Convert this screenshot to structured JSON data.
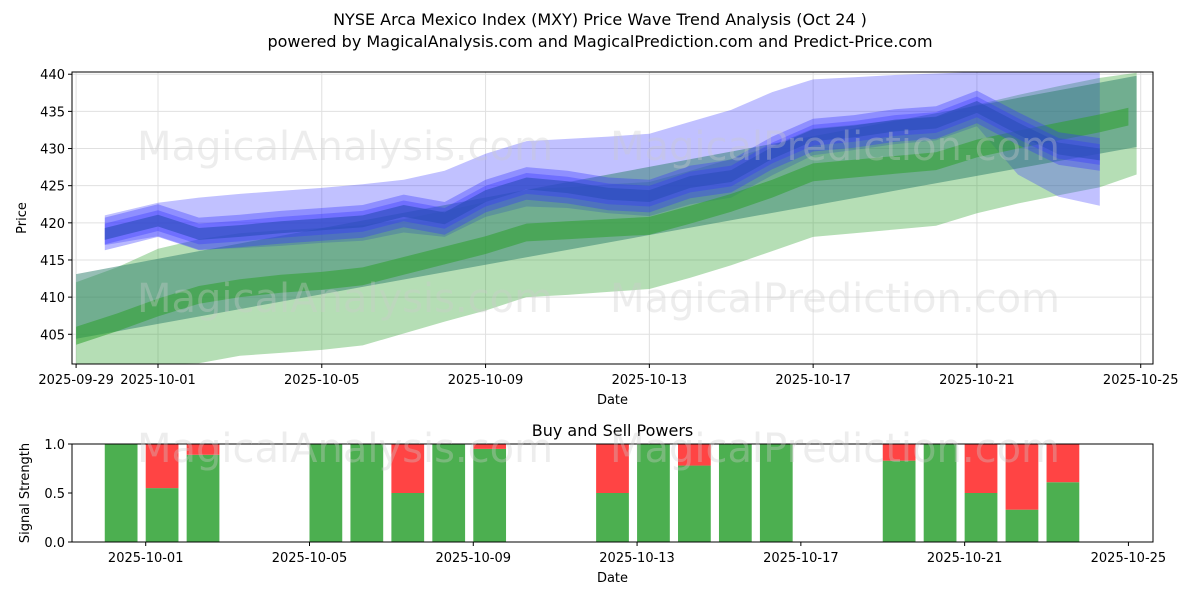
{
  "title_line1": "NYSE Arca Mexico Index (MXY) Price Wave Trend Analysis (Oct 24 )",
  "title_line2": "powered by MagicalAnalysis.com and MagicalPrediction.com and Predict-Price.com",
  "watermarks": [
    "MagicalAnalysis.com",
    "MagicalPrediction.com"
  ],
  "colors": {
    "blue": "#3333ff",
    "green": "#2ca02c",
    "buy": "#4caf50",
    "sell": "#ff4444",
    "grid": "#e0e0e0"
  },
  "chart_data": [
    {
      "type": "line",
      "name": "price-wave-trend",
      "xlabel": "Date",
      "ylabel": "Price",
      "x_tick_labels": [
        "2025-09-29",
        "2025-10-01",
        "2025-10-05",
        "2025-10-09",
        "2025-10-13",
        "2025-10-17",
        "2025-10-21",
        "2025-10-25"
      ],
      "x_tick_days": [
        -2,
        0,
        4,
        8,
        12,
        16,
        20,
        24
      ],
      "xlim_days": [
        -2.1,
        24.3
      ],
      "ylim": [
        401,
        440.3
      ],
      "y_ticks": [
        405,
        410,
        415,
        420,
        425,
        430,
        435,
        440
      ],
      "grid": true,
      "series": [
        {
          "name": "blue-wave-price-band",
          "x_days": [
            -1.3,
            0,
            1,
            2,
            3,
            4,
            5,
            6,
            7,
            8,
            9,
            10,
            11,
            12,
            13,
            14,
            15,
            16,
            17,
            18,
            19,
            20,
            21,
            22,
            23
          ],
          "values": [
            418.5,
            420.3,
            418.5,
            418.9,
            419.4,
            419.8,
            420.2,
            421.6,
            420.6,
            423.6,
            425.3,
            424.8,
            423.9,
            423.6,
            425.5,
            426.3,
            429.4,
            431.8,
            432.3,
            433.1,
            433.5,
            435.6,
            432.7,
            430.0,
            429.2
          ],
          "band_half_width": 1.2
        },
        {
          "name": "blue-upper-envelope",
          "x_days": [
            -1.3,
            0,
            1,
            2,
            3,
            4,
            5,
            6,
            7,
            8,
            9,
            10,
            11,
            12,
            13,
            14,
            15,
            16,
            17,
            18,
            19,
            20,
            21,
            22,
            23
          ],
          "values": [
            421,
            422.7,
            423.4,
            423.9,
            424.3,
            424.7,
            425.2,
            425.8,
            427,
            429.3,
            431,
            431.3,
            431.6,
            432,
            433.6,
            435.2,
            437.6,
            439.3,
            439.6,
            439.9,
            440.1,
            440.3,
            440.3,
            440.3,
            440.3
          ]
        },
        {
          "name": "blue-lower-envelope",
          "x_days": [
            -1.3,
            0,
            1,
            2,
            3,
            4,
            5,
            6,
            7,
            8,
            9,
            10,
            11,
            12,
            13,
            14,
            15,
            16,
            17,
            18,
            19,
            20,
            21,
            22,
            23
          ],
          "values": [
            417,
            418.2,
            416.4,
            416.6,
            416.9,
            417.3,
            417.6,
            418.7,
            418.1,
            420.8,
            422.2,
            422,
            421.3,
            420.9,
            422.5,
            423.4,
            426.4,
            429.1,
            429.8,
            430.6,
            431.1,
            433,
            426.5,
            423.5,
            422.3
          ]
        },
        {
          "name": "teal-trend-band",
          "x_days": [
            -2,
            23.9
          ],
          "upper": [
            413.1,
            439.8
          ],
          "lower": [
            404.4,
            430.2
          ]
        },
        {
          "name": "green-trend-center",
          "x_days": [
            -2,
            -1,
            0,
            1,
            2,
            3,
            4,
            5,
            6,
            7,
            8,
            9,
            10,
            11,
            12,
            13,
            14,
            15,
            16,
            17,
            18,
            19,
            20,
            21,
            22,
            23,
            23.7
          ],
          "values": [
            404.8,
            406.6,
            408.6,
            410.3,
            411.2,
            411.8,
            412.2,
            412.8,
            414.2,
            415.6,
            417,
            418.7,
            419,
            419.3,
            419.6,
            421.1,
            422.7,
            424.6,
            426.8,
            427.3,
            427.8,
            428.3,
            430,
            431.2,
            432.3,
            433.4,
            434.3
          ],
          "band_half_width": 1.2
        },
        {
          "name": "green-upper-envelope",
          "x_days": [
            -2,
            -1,
            0,
            1,
            2,
            3,
            4,
            5,
            6,
            7,
            8,
            9,
            10,
            11,
            12,
            13,
            14,
            15,
            16,
            17,
            18,
            19,
            20,
            21,
            22,
            23,
            23.9
          ],
          "values": [
            412,
            414,
            416.5,
            417.8,
            418.6,
            419,
            419.3,
            419.7,
            420.5,
            421.6,
            422.8,
            424.5,
            424.8,
            425.2,
            425.5,
            427,
            428.6,
            430.4,
            432.7,
            433.2,
            433.8,
            434.2,
            435.9,
            437.2,
            438.4,
            439.5,
            440.2
          ]
        },
        {
          "name": "green-lower-envelope",
          "x_days": [
            -2,
            -1,
            0,
            1,
            2,
            3,
            4,
            5,
            6,
            7,
            8,
            9,
            10,
            11,
            12,
            13,
            14,
            15,
            16,
            17,
            18,
            19,
            20,
            21,
            22,
            23,
            24.4
          ],
          "values": [
            401,
            401,
            401,
            401.1,
            402.1,
            402.5,
            402.9,
            403.5,
            405.1,
            406.7,
            408.2,
            410,
            410.3,
            410.7,
            411.1,
            412.6,
            414.3,
            416.2,
            418.1,
            418.6,
            419.1,
            419.6,
            421.3,
            422.6,
            423.7,
            424.8,
            426.5
          ]
        }
      ]
    },
    {
      "type": "bar",
      "name": "buy-and-sell-powers",
      "title": "Buy and Sell Powers",
      "xlabel": "Date",
      "ylabel": "Signal Strength",
      "x_tick_labels": [
        "2025-10-01",
        "2025-10-05",
        "2025-10-09",
        "2025-10-13",
        "2025-10-17",
        "2025-10-21",
        "2025-10-25"
      ],
      "x_tick_days": [
        0,
        4,
        8,
        12,
        16,
        20,
        24
      ],
      "xlim_days": [
        -1.8,
        24.6
      ],
      "ylim": [
        0,
        1
      ],
      "y_ticks": [
        0,
        0.5,
        1
      ],
      "y_tick_labels": [
        "0.0",
        "0.5",
        "1.0"
      ],
      "categories": [
        "2025-09-30",
        "2025-10-01",
        "2025-10-02",
        "2025-10-03",
        "2025-10-04",
        "2025-10-05",
        "2025-10-06",
        "2025-10-07",
        "2025-10-08",
        "2025-10-09",
        "2025-10-10",
        "2025-10-11",
        "2025-10-12",
        "2025-10-13",
        "2025-10-14",
        "2025-10-15",
        "2025-10-16",
        "2025-10-17",
        "2025-10-18",
        "2025-10-19",
        "2025-10-20",
        "2025-10-21",
        "2025-10-22",
        "2025-10-23",
        "2025-10-24"
      ],
      "x_days": [
        -0.6,
        0.4,
        1.4,
        2.4,
        3.4,
        4.4,
        5.4,
        6.4,
        7.4,
        8.4,
        9.4,
        10.4,
        11.4,
        12.4,
        13.4,
        14.4,
        15.4,
        16.4,
        17.4,
        18.4,
        19.4,
        20.4,
        21.4,
        22.4,
        23.4
      ],
      "series": [
        {
          "name": "Buy",
          "values": [
            1.0,
            0.55,
            0.89,
            0,
            0,
            1.0,
            1.0,
            0.5,
            1.0,
            0.95,
            0,
            0,
            0.5,
            1.0,
            0.78,
            1.0,
            1.0,
            0,
            0,
            0.83,
            1.0,
            0.5,
            0.33,
            0.61,
            0
          ]
        },
        {
          "name": "Sell",
          "values": [
            0,
            0.45,
            0.11,
            0,
            0,
            0,
            0,
            0.5,
            0,
            0.05,
            0,
            0,
            0.5,
            0,
            0.22,
            0,
            0,
            0,
            0,
            0.17,
            0,
            0.5,
            0.67,
            0.39,
            0
          ]
        }
      ]
    }
  ]
}
